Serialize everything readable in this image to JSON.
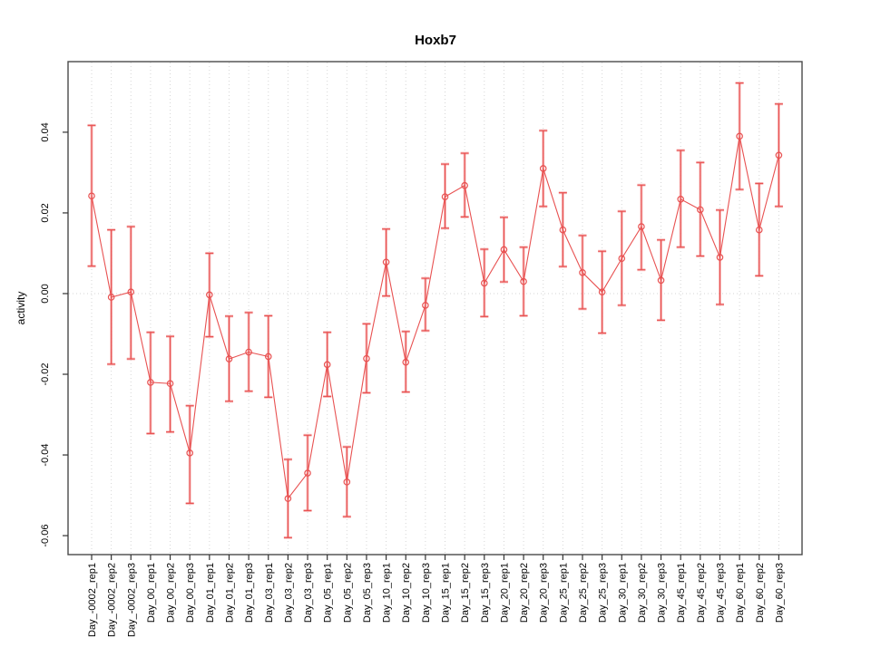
{
  "window": {
    "title": "Hoxb7"
  },
  "chart_data": {
    "type": "line",
    "title": "Hoxb7",
    "xlabel": "",
    "ylabel": "activity",
    "legend": "none",
    "grid": "vertical dotted gridline at every category; horizontal dotted line at y=0 only",
    "point_style": "open-circle",
    "error_bars": true,
    "categories": [
      "Day_-0002_rep1",
      "Day_-0002_rep2",
      "Day_-0002_rep3",
      "Day_00_rep1",
      "Day_00_rep2",
      "Day_00_rep3",
      "Day_01_rep1",
      "Day_01_rep2",
      "Day_01_rep3",
      "Day_03_rep1",
      "Day_03_rep2",
      "Day_03_rep3",
      "Day_05_rep1",
      "Day_05_rep2",
      "Day_05_rep3",
      "Day_10_rep1",
      "Day_10_rep2",
      "Day_10_rep3",
      "Day_15_rep1",
      "Day_15_rep2",
      "Day_15_rep3",
      "Day_20_rep1",
      "Day_20_rep2",
      "Day_20_rep3",
      "Day_25_rep1",
      "Day_25_rep2",
      "Day_25_rep3",
      "Day_30_rep1",
      "Day_30_rep2",
      "Day_30_rep3",
      "Day_45_rep1",
      "Day_45_rep2",
      "Day_45_rep3",
      "Day_60_rep1",
      "Day_60_rep2",
      "Day_60_rep3"
    ],
    "series": [
      {
        "name": "activity",
        "values": [
          0.0242,
          -0.0009,
          0.0004,
          -0.022,
          -0.0223,
          -0.0395,
          -0.0003,
          -0.0162,
          -0.0145,
          -0.0156,
          -0.0508,
          -0.0445,
          -0.0176,
          -0.0467,
          -0.0161,
          0.0078,
          -0.017,
          -0.0029,
          0.024,
          0.0268,
          0.0026,
          0.0109,
          0.003,
          0.031,
          0.0158,
          0.0052,
          0.0004,
          0.0087,
          0.0166,
          0.0033,
          0.0234,
          0.0208,
          0.009,
          0.039,
          0.0158,
          0.0343
        ],
        "error_lower": [
          0.0068,
          -0.0175,
          -0.0162,
          -0.0347,
          -0.0343,
          -0.052,
          -0.0107,
          -0.0267,
          -0.0242,
          -0.0257,
          -0.0605,
          -0.0538,
          -0.0255,
          -0.0553,
          -0.0246,
          -0.0006,
          -0.0244,
          -0.0092,
          0.0162,
          0.019,
          -0.0057,
          0.0029,
          -0.0055,
          0.0216,
          0.0067,
          -0.0038,
          -0.0098,
          -0.0029,
          0.0059,
          -0.0066,
          0.0115,
          0.0093,
          -0.0027,
          0.0258,
          0.0044,
          0.0216
        ],
        "error_upper": [
          0.0417,
          0.0158,
          0.0166,
          -0.0096,
          -0.0106,
          -0.0278,
          0.01,
          -0.0056,
          -0.0047,
          -0.0055,
          -0.0411,
          -0.0351,
          -0.0096,
          -0.038,
          -0.0075,
          0.016,
          -0.0094,
          0.0038,
          0.0321,
          0.0348,
          0.011,
          0.0189,
          0.0115,
          0.0404,
          0.025,
          0.0144,
          0.0105,
          0.0204,
          0.0269,
          0.0133,
          0.0355,
          0.0325,
          0.0207,
          0.0522,
          0.0273,
          0.047
        ]
      }
    ],
    "ylim": [
      -0.0647,
      0.0575
    ],
    "yticks": [
      0.04,
      0.02,
      0.0,
      -0.02,
      -0.04,
      -0.06
    ],
    "colors": {
      "series": "#e85151",
      "series_halo": "rgba(244,135,135,0.5)",
      "grid": "#d6d6d6",
      "axis_box": "#4a4a4a",
      "tick": "#333333",
      "text": "#000000",
      "background": "#ffffff"
    }
  }
}
